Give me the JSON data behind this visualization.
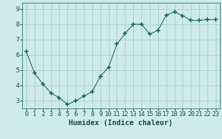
{
  "x": [
    0,
    1,
    2,
    3,
    4,
    5,
    6,
    7,
    8,
    9,
    10,
    11,
    12,
    13,
    14,
    15,
    16,
    17,
    18,
    19,
    20,
    21,
    22,
    23
  ],
  "y": [
    6.2,
    4.8,
    4.1,
    3.5,
    3.2,
    2.75,
    3.0,
    3.3,
    3.6,
    4.6,
    5.2,
    6.7,
    7.4,
    8.0,
    8.0,
    7.35,
    7.6,
    8.6,
    8.8,
    8.55,
    8.25,
    8.25,
    8.3,
    8.3
  ],
  "line_color": "#1a6b5a",
  "marker": "+",
  "marker_size": 4,
  "bg_color": "#ceeaea",
  "grid_color": "#a8cccc",
  "xlabel": "Humidex (Indice chaleur)",
  "xlim": [
    -0.5,
    23.5
  ],
  "ylim": [
    2.5,
    9.4
  ],
  "yticks": [
    3,
    4,
    5,
    6,
    7,
    8,
    9
  ],
  "xtick_labels": [
    "0",
    "1",
    "2",
    "3",
    "4",
    "5",
    "6",
    "7",
    "8",
    "9",
    "10",
    "11",
    "12",
    "13",
    "14",
    "15",
    "16",
    "17",
    "18",
    "19",
    "20",
    "21",
    "22",
    "23"
  ],
  "xlabel_fontsize": 7.5,
  "tick_fontsize": 6.5
}
